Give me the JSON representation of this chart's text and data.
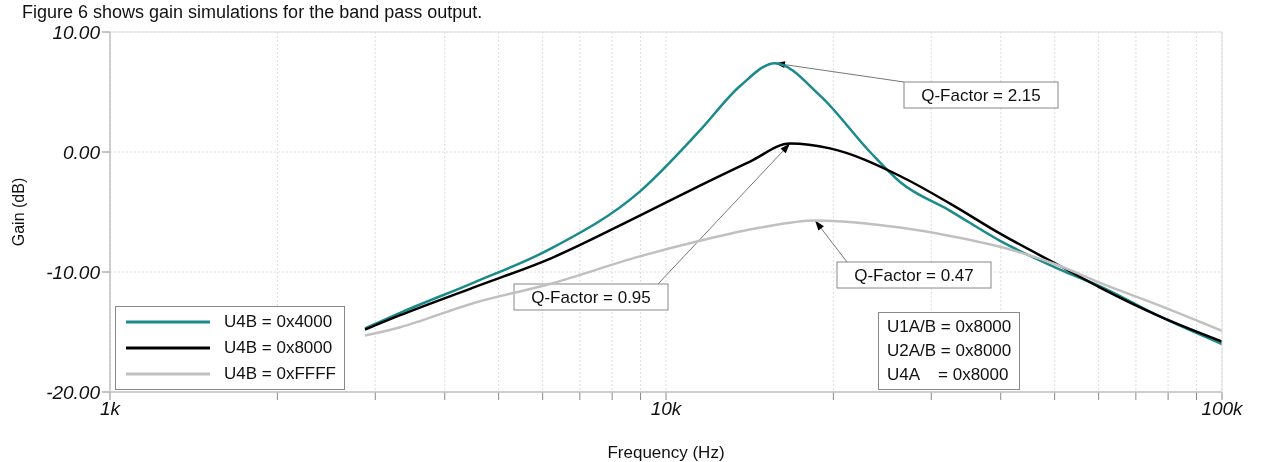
{
  "chart_data": {
    "type": "line",
    "xlabel": "Frequency (Hz)",
    "ylabel": "Gain (dB)",
    "log": "x",
    "xlim": [
      1000,
      100000
    ],
    "xticks": [
      {
        "value": 1000,
        "label": "1k"
      },
      {
        "value": 2000,
        "label": null
      },
      {
        "value": 3000,
        "label": null
      },
      {
        "value": 4000,
        "label": null
      },
      {
        "value": 5000,
        "label": null
      },
      {
        "value": 6000,
        "label": null
      },
      {
        "value": 7000,
        "label": null
      },
      {
        "value": 8000,
        "label": null
      },
      {
        "value": 9000,
        "label": null
      },
      {
        "value": 10000,
        "label": "10k"
      },
      {
        "value": 20000,
        "label": null
      },
      {
        "value": 30000,
        "label": null
      },
      {
        "value": 40000,
        "label": null
      },
      {
        "value": 50000,
        "label": null
      },
      {
        "value": 60000,
        "label": null
      },
      {
        "value": 70000,
        "label": null
      },
      {
        "value": 80000,
        "label": null
      },
      {
        "value": 90000,
        "label": null
      },
      {
        "value": 100000,
        "label": "100k"
      }
    ],
    "ylim": [
      -20,
      10
    ],
    "yticks": [
      {
        "value": -20,
        "label": "-20.00"
      },
      {
        "value": -10,
        "label": "-10.00"
      },
      {
        "value": 0,
        "label": "0.00"
      },
      {
        "value": 10,
        "label": "10.00"
      }
    ],
    "grid": true,
    "legend": "bottom left",
    "line_style": "solid",
    "marker": "none",
    "series": [
      {
        "name": "U4B = 0x4000",
        "color": "#1a8a8a",
        "x": [
          2875,
          3325,
          4500,
          6180,
          8970,
          11510,
          13590,
          15700,
          18930,
          23280,
          26360,
          32430,
          39900,
          51150,
          60360,
          77270,
          100000
        ],
        "values": [
          -14.7,
          -13.4,
          -10.9,
          -8.1,
          -3.3,
          1.8,
          5.5,
          7.4,
          4.7,
          0,
          -2.5,
          -4.9,
          -7.4,
          -9.8,
          -11.2,
          -13.7,
          -16
        ]
      },
      {
        "name": "U4B = 0x8000",
        "color": "#000000",
        "x": [
          2875,
          3325,
          4500,
          6180,
          8970,
          11510,
          14160,
          16710,
          19720,
          26360,
          32430,
          39900,
          51150,
          60360,
          77270,
          100000
        ],
        "values": [
          -14.8,
          -13.6,
          -11.3,
          -8.9,
          -5.3,
          -2.8,
          -0.8,
          0.7,
          0.3,
          -2,
          -4.3,
          -6.8,
          -9.5,
          -11.3,
          -13.7,
          -15.8
        ]
      },
      {
        "name": "U4B = 0xFFFF",
        "color": "#c0c0c0",
        "x": [
          2875,
          3325,
          4500,
          6180,
          8970,
          11510,
          14760,
          18540,
          26360,
          32430,
          39900,
          51150,
          60360,
          77270,
          100000
        ],
        "values": [
          -15.3,
          -14.6,
          -12.6,
          -11,
          -8.7,
          -7.4,
          -6.3,
          -5.7,
          -6.3,
          -7,
          -7.9,
          -9.5,
          -10.9,
          -12.8,
          -14.9
        ]
      }
    ],
    "annotations": [
      "Figure 6 shows gain simulations for the band pass output.",
      {
        "text": "Q-Factor = 2.15",
        "x": 15700,
        "y": 7.4
      },
      {
        "text": "Q-Factor = 0.95",
        "x": 16710,
        "y": 0.7
      },
      {
        "text": "Q-Factor = 0.47",
        "x": 18540,
        "y": -5.7
      },
      "U1A/B = 0x8000",
      "U2A/B = 0x8000",
      "U4A    = 0x8000"
    ]
  }
}
